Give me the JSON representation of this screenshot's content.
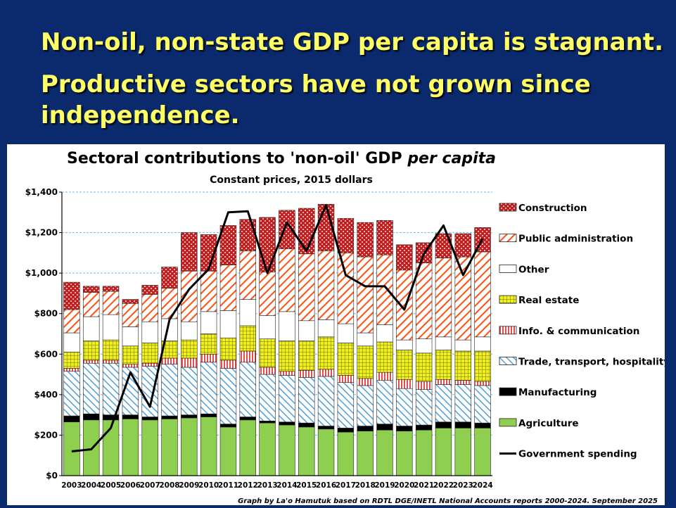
{
  "slide": {
    "headline_line1": "Non-oil, non-state GDP per capita is stagnant.",
    "headline_line2": "Productive sectors have not grown since",
    "headline_line3": "independence.",
    "background_color": "#0b2a6e",
    "headline_color": "#ffff66"
  },
  "chart_data": {
    "type": "bar",
    "stacked": true,
    "title_main": "Sectoral contributions to 'non-oil' GDP ",
    "title_italic": "per capita",
    "subtitle": "Constant prices, 2015 dollars",
    "source_note": "Graph by La'o Hamutuk based on RDTL DGE/INETL National Accounts reports 2000-2024.  September 2025",
    "categories": [
      "2003",
      "2004",
      "2005",
      "2006",
      "2007",
      "2008",
      "2009",
      "2010",
      "2011",
      "2012",
      "2013",
      "2014",
      "2015",
      "2016",
      "2017",
      "2018",
      "2019",
      "2020",
      "2021",
      "2022",
      "2023",
      "2024"
    ],
    "y_ticks": [
      "$0",
      "$200",
      "$400",
      "$600",
      "$800",
      "$1,000",
      "$1,200",
      "$1,400"
    ],
    "ylim": [
      0,
      1400
    ],
    "grid": true,
    "legend_position": "right",
    "series": [
      {
        "name": "Agriculture",
        "pattern": "solid",
        "color": "#8fcf4f",
        "values": [
          265,
          275,
          275,
          280,
          275,
          280,
          285,
          290,
          240,
          275,
          260,
          250,
          240,
          230,
          215,
          220,
          225,
          220,
          225,
          235,
          235,
          235
        ]
      },
      {
        "name": "Manufacturing",
        "pattern": "solid",
        "color": "#000000",
        "values": [
          30,
          30,
          25,
          20,
          15,
          15,
          15,
          15,
          15,
          15,
          10,
          15,
          20,
          15,
          20,
          25,
          30,
          25,
          25,
          30,
          30,
          25
        ]
      },
      {
        "name": "Trade, transport, hospitality",
        "pattern": "diag",
        "color": "#4f9fd8",
        "values": [
          220,
          250,
          255,
          235,
          250,
          255,
          235,
          255,
          275,
          270,
          230,
          230,
          225,
          245,
          225,
          200,
          215,
          185,
          175,
          185,
          185,
          185
        ]
      },
      {
        "name": "Info. & communication",
        "pattern": "vline",
        "color": "#ff4040",
        "values": [
          15,
          15,
          15,
          15,
          15,
          30,
          45,
          40,
          40,
          55,
          35,
          20,
          35,
          35,
          35,
          35,
          40,
          45,
          40,
          25,
          20,
          20
        ]
      },
      {
        "name": "Real estate",
        "pattern": "grid",
        "color": "#e0e020",
        "values": [
          80,
          95,
          100,
          90,
          100,
          85,
          90,
          100,
          110,
          125,
          140,
          150,
          145,
          160,
          160,
          160,
          150,
          145,
          140,
          145,
          145,
          150
        ]
      },
      {
        "name": "Other",
        "pattern": "solid",
        "color": "#ffffff",
        "values": [
          95,
          120,
          125,
          95,
          105,
          110,
          90,
          110,
          135,
          130,
          115,
          145,
          100,
          85,
          95,
          65,
          85,
          50,
          70,
          65,
          55,
          70
        ]
      },
      {
        "name": "Public administration",
        "pattern": "diag2",
        "color": "#ff6010",
        "values": [
          115,
          120,
          115,
          115,
          135,
          150,
          250,
          200,
          225,
          240,
          215,
          310,
          330,
          340,
          350,
          375,
          345,
          345,
          375,
          390,
          410,
          420
        ]
      },
      {
        "name": "Construction",
        "pattern": "brick",
        "color": "#c02020",
        "values": [
          135,
          30,
          25,
          20,
          45,
          105,
          190,
          180,
          195,
          155,
          270,
          190,
          225,
          230,
          170,
          170,
          170,
          125,
          100,
          120,
          115,
          120
        ]
      }
    ],
    "line": {
      "name": "Government spending",
      "color": "#000000",
      "values": [
        120,
        130,
        235,
        510,
        340,
        770,
        920,
        1020,
        1300,
        1305,
        1000,
        1250,
        1110,
        1335,
        990,
        935,
        935,
        820,
        1095,
        1235,
        990,
        1170
      ]
    }
  }
}
